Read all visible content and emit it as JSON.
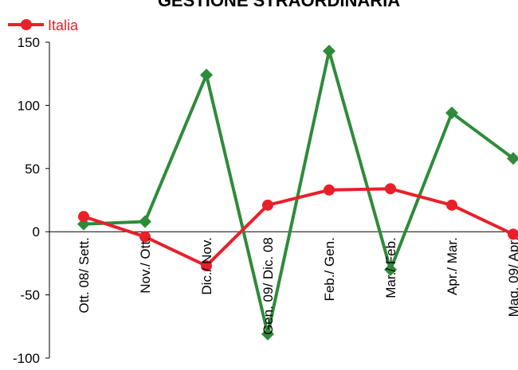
{
  "chart_data": {
    "type": "line",
    "title": "GESTIONE STRAORDINARIA",
    "categories": [
      "Ott. 08/ Sett.",
      "Nov./ Ott.",
      "Dic./ Nov.",
      "Gen. 09/ Dic. 08",
      "Feb./ Gen.",
      "Mar./ Feb.",
      "Apr./ Mar.",
      "Mag. 09/ Apr."
    ],
    "ylim": [
      -100,
      150
    ],
    "yticks": [
      -100,
      -50,
      0,
      50,
      100,
      150
    ],
    "legend_position": "top-left",
    "series": [
      {
        "name": "Italia",
        "color": "#e8202a",
        "marker": "circle",
        "values": [
          12,
          -4,
          -27,
          21,
          33,
          34,
          21,
          -2
        ]
      },
      {
        "color": "#2e8b3a",
        "marker": "diamond",
        "values": [
          6,
          8,
          124,
          -81,
          143,
          -30,
          94,
          58
        ]
      }
    ]
  }
}
